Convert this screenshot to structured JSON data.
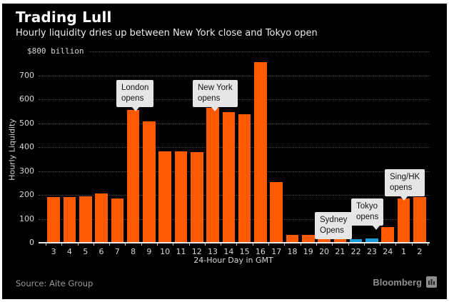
{
  "header": {
    "title": "Trading Lull",
    "subtitle": "Hourly liquidity dries up between New York close and Tokyo open"
  },
  "footer": {
    "source": "Source: Aite Group",
    "brand": "Bloomberg",
    "brand_icon": "bar-chart-icon"
  },
  "chart_data": {
    "type": "bar",
    "title": "Trading Lull",
    "subtitle": "Hourly liquidity dries up between New York close and Tokyo open",
    "xlabel": "24-Hour Day in GMT",
    "ylabel": "Hourly Liquidity",
    "y_axis_top_label": "$800 billion",
    "ylim": [
      0,
      800
    ],
    "ytick_step": 100,
    "ytick_labels": [
      "0",
      "100",
      "200",
      "300",
      "400",
      "500",
      "600",
      "700"
    ],
    "grid": "dotted-horizontal",
    "legend": "none",
    "categories": [
      "3",
      "4",
      "5",
      "6",
      "7",
      "8",
      "9",
      "10",
      "11",
      "12",
      "13",
      "14",
      "15",
      "16",
      "17",
      "18",
      "19",
      "20",
      "21",
      "22",
      "23",
      "24",
      "1",
      "2"
    ],
    "values": [
      190,
      192,
      195,
      205,
      186,
      555,
      508,
      382,
      381,
      380,
      565,
      545,
      536,
      755,
      254,
      33,
      34,
      35,
      35,
      16,
      18,
      65,
      186,
      190
    ],
    "colors": {
      "bar_default": "#FF5A00",
      "bar_highlight": "#1B9DD9",
      "background": "#000000",
      "text": "#D8D8D8"
    },
    "highlight_categories": [
      "22",
      "23"
    ],
    "annotations": [
      {
        "lines": [
          "London",
          "opens"
        ],
        "target_hour": "8"
      },
      {
        "lines": [
          "New York",
          "opens"
        ],
        "target_hour": "13"
      },
      {
        "lines": [
          "Sydney",
          "Opens"
        ],
        "target_hour": "20"
      },
      {
        "lines": [
          "Tokyo",
          "opens"
        ],
        "target_hour": "23"
      },
      {
        "lines": [
          "Sing/HK",
          "opens"
        ],
        "target_hour": "1"
      }
    ]
  }
}
